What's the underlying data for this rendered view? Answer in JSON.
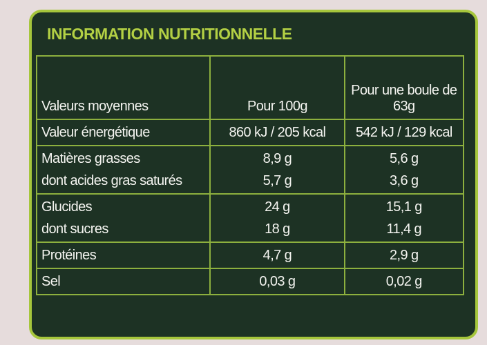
{
  "title": "INFORMATION NUTRITIONNELLE",
  "table": {
    "header": [
      "Valeurs moyennes",
      "Pour 100g",
      "Pour une boule de 63g"
    ],
    "sections": [
      [
        [
          "Valeur énergétique",
          "860 kJ / 205 kcal",
          "542 kJ / 129 kcal"
        ]
      ],
      [
        [
          "Matières grasses",
          "8,9 g",
          "5,6 g"
        ],
        [
          "dont acides gras saturés",
          "5,7 g",
          "3,6 g"
        ]
      ],
      [
        [
          "Glucides",
          "24 g",
          "15,1 g"
        ],
        [
          "dont sucres",
          "18 g",
          "11,4 g"
        ]
      ],
      [
        [
          "Protéines",
          "4,7 g",
          "2,9 g"
        ]
      ],
      [
        [
          "Sel",
          "0,03 g",
          "0,02 g"
        ]
      ]
    ]
  }
}
